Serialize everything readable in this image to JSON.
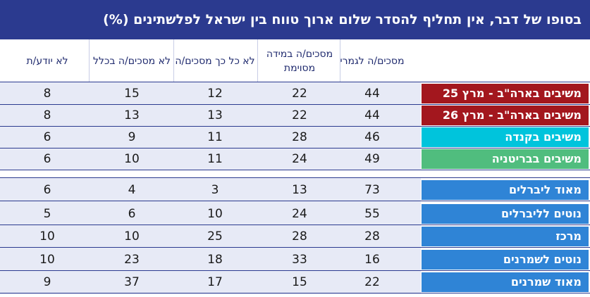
{
  "title": "בסופו של דבר, אין תחליף להסדר שלום ארוך טווח בין ישראל לפלשתינים (%)",
  "colors": {
    "title_bg": "#2b3a8f",
    "row_bg": "#e7eaf6",
    "red": "#a3171e",
    "cyan": "#00c4dc",
    "green": "#50bd7e",
    "blue": "#2f84d6"
  },
  "chart_data": {
    "type": "table",
    "title": "בסופו של דבר, אין תחליף להסדר שלום ארוך טווח בין ישראל לפלשתינים (%)",
    "columns": [
      "מסכים/ה לגמרי",
      "מסכים/ה במידה מסוימת",
      "לא כל כך מסכים/ה",
      "לא מסכים/ה בכלל",
      "לא יודע/ת"
    ],
    "rows": [
      {
        "label": "משיבים בארה\"ב - מרץ 25",
        "color": "#a3171e",
        "values": [
          44,
          22,
          12,
          15,
          8
        ]
      },
      {
        "label": "משיבים בארה\"ב - מרץ 26",
        "color": "#a3171e",
        "values": [
          44,
          22,
          13,
          13,
          8
        ]
      },
      {
        "label": "משיבים בקנדה",
        "color": "#00c4dc",
        "values": [
          46,
          28,
          11,
          9,
          6
        ]
      },
      {
        "label": "משיבים בבריטניה",
        "color": "#50bd7e",
        "values": [
          49,
          24,
          11,
          10,
          6
        ]
      },
      {
        "label": "מאוד ליברלים",
        "color": "#2f84d6",
        "values": [
          73,
          13,
          3,
          4,
          6
        ]
      },
      {
        "label": "נוטים לליברלים",
        "color": "#2f84d6",
        "values": [
          55,
          24,
          10,
          6,
          5
        ]
      },
      {
        "label": "מרכז",
        "color": "#2f84d6",
        "values": [
          28,
          28,
          25,
          10,
          10
        ]
      },
      {
        "label": "נוטים לשמרנים",
        "color": "#2f84d6",
        "values": [
          16,
          33,
          18,
          23,
          10
        ]
      },
      {
        "label": "מאוד שמרנים",
        "color": "#2f84d6",
        "values": [
          22,
          15,
          17,
          37,
          9
        ]
      }
    ]
  }
}
